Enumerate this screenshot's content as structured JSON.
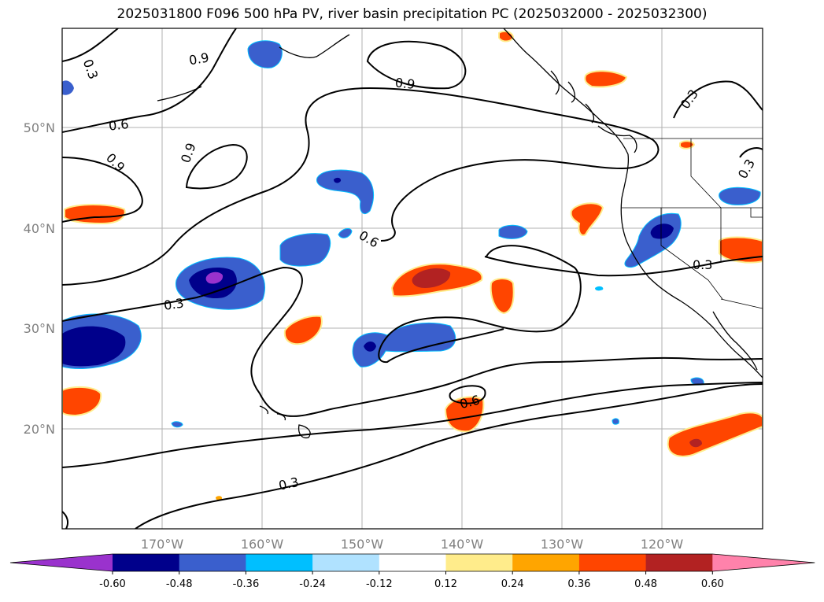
{
  "title": "2025031800 F096 500 hPa PV, river basin precipitation PC (2025032000 - 2025032300)",
  "lat_labels": [
    "50°N",
    "40°N",
    "30°N",
    "20°N"
  ],
  "lon_labels": [
    "170°W",
    "160°W",
    "150°W",
    "140°W",
    "130°W",
    "120°W"
  ],
  "colorbar": {
    "ticks": [
      "-0.60",
      "-0.48",
      "-0.36",
      "-0.24",
      "-0.12",
      "0.12",
      "0.24",
      "0.36",
      "0.48",
      "0.60"
    ],
    "colors": [
      "#9a32cd",
      "#00008b",
      "#3a5fcd",
      "#00bfff",
      "#b0e2ff",
      "#ffffff",
      "#ffec8b",
      "#ffa500",
      "#ff4500",
      "#b22222",
      "#ff82ab"
    ]
  },
  "contour_labels": [
    "0.3",
    "0.9",
    "0.6",
    "0.9",
    "0.9",
    "0.9",
    "0.3",
    "0.3",
    "0.6",
    "0.3",
    "0.6",
    "0.3",
    "0.3"
  ],
  "colors": {
    "neg_core": "#9a32cd",
    "neg_strong": "#00008b",
    "neg_mid": "#3a5fcd",
    "neg_light": "#00bfff",
    "pos_light": "#ffec8b",
    "pos_mid": "#ffa500",
    "pos_strong": "#ff4500",
    "pos_core": "#b22222"
  }
}
